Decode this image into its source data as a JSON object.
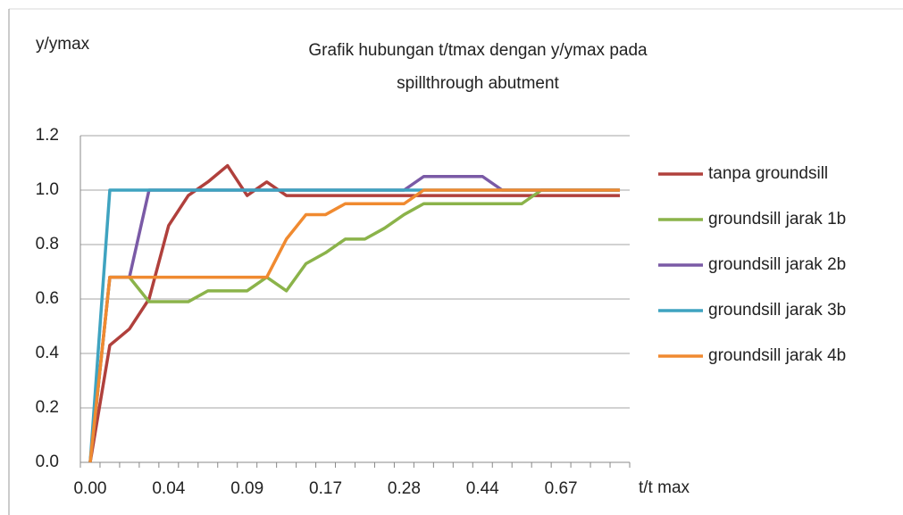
{
  "chart_data": {
    "type": "line",
    "title": [
      "Grafik hubungan t/tmax dengan y/ymax pada",
      "spillthrough  abutment"
    ],
    "y_label": "y/ymax",
    "x_label": "t/t max",
    "categories": [
      "0.00",
      null,
      null,
      null,
      "0.04",
      null,
      null,
      null,
      "0.09",
      null,
      null,
      null,
      "0.17",
      null,
      null,
      null,
      "0.28",
      null,
      null,
      null,
      "0.44",
      null,
      null,
      null,
      "0.67",
      null,
      null,
      null
    ],
    "ylim": [
      0,
      1.2
    ],
    "yticks": [
      {
        "value": 0,
        "label": "0.0"
      },
      {
        "value": 0.2,
        "label": "0.2"
      },
      {
        "value": 0.4,
        "label": "0.4"
      },
      {
        "value": 0.6,
        "label": "0.6"
      },
      {
        "value": 0.8,
        "label": "0.8"
      },
      {
        "value": 1.0,
        "label": "1.0"
      },
      {
        "value": 1.2,
        "label": "1.2"
      }
    ],
    "grid": true,
    "legend": "right",
    "series": [
      {
        "name": "tanpa groundsill",
        "color": "#b0403c",
        "values": [
          0,
          0.43,
          0.49,
          0.6,
          0.87,
          0.98,
          1.03,
          1.09,
          0.98,
          1.03,
          0.98,
          0.98,
          0.98,
          0.98,
          0.98,
          0.98,
          0.98,
          0.98,
          0.98,
          0.98,
          0.98,
          0.98,
          0.98,
          0.98,
          0.98,
          0.98,
          0.98,
          0.98
        ]
      },
      {
        "name": "groundsill jarak 1b",
        "color": "#8bb34a",
        "values": [
          0,
          0.68,
          0.68,
          0.59,
          0.59,
          0.59,
          0.63,
          0.63,
          0.63,
          0.68,
          0.63,
          0.73,
          0.77,
          0.82,
          0.82,
          0.86,
          0.91,
          0.95,
          0.95,
          0.95,
          0.95,
          0.95,
          0.95,
          1.0,
          1.0,
          1.0,
          1.0,
          1.0
        ]
      },
      {
        "name": "groundsill jarak 2b",
        "color": "#7a5aa6",
        "values": [
          0,
          0.68,
          0.68,
          1.0,
          1.0,
          1.0,
          1.0,
          1.0,
          1.0,
          1.0,
          1.0,
          1.0,
          1.0,
          1.0,
          1.0,
          1.0,
          1.0,
          1.05,
          1.05,
          1.05,
          1.05,
          1.0,
          1.0,
          1.0,
          1.0,
          1.0,
          1.0,
          1.0
        ]
      },
      {
        "name": "groundsill jarak 3b",
        "color": "#3fa3c0",
        "values": [
          0,
          1.0,
          1.0,
          1.0,
          1.0,
          1.0,
          1.0,
          1.0,
          1.0,
          1.0,
          1.0,
          1.0,
          1.0,
          1.0,
          1.0,
          1.0,
          1.0,
          1.0,
          1.0,
          1.0,
          1.0,
          1.0,
          1.0,
          1.0,
          1.0,
          1.0,
          1.0,
          1.0
        ]
      },
      {
        "name": "groundsill jarak 4b",
        "color": "#f08a30",
        "values": [
          0,
          0.68,
          0.68,
          0.68,
          0.68,
          0.68,
          0.68,
          0.68,
          0.68,
          0.68,
          0.82,
          0.91,
          0.91,
          0.95,
          0.95,
          0.95,
          0.95,
          1.0,
          1.0,
          1.0,
          1.0,
          1.0,
          1.0,
          1.0,
          1.0,
          1.0,
          1.0,
          1.0
        ]
      }
    ]
  }
}
